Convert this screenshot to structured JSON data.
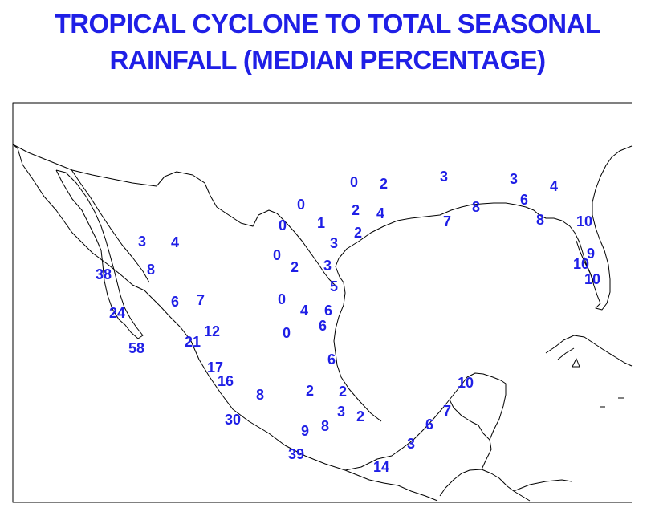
{
  "title": {
    "line1": "TROPICAL CYCLONE TO TOTAL SEASONAL",
    "line2": "RAINFALL (MEDIAN PERCENTAGE)"
  },
  "colors": {
    "title": "#1f1fe6",
    "values": "#1f1fe6",
    "coastline": "#000000",
    "background": "#ffffff"
  },
  "stations": [
    {
      "label": "0"
    },
    {
      "label": "2"
    },
    {
      "label": "3"
    },
    {
      "label": "3"
    },
    {
      "label": "4"
    },
    {
      "label": "0"
    },
    {
      "label": "2"
    },
    {
      "label": "4"
    },
    {
      "label": "8"
    },
    {
      "label": "6"
    },
    {
      "label": "7"
    },
    {
      "label": "0"
    },
    {
      "label": "1"
    },
    {
      "label": "2"
    },
    {
      "label": "8"
    },
    {
      "label": "10"
    },
    {
      "label": "3"
    },
    {
      "label": "4"
    },
    {
      "label": "3"
    },
    {
      "label": "0"
    },
    {
      "label": "2"
    },
    {
      "label": "3"
    },
    {
      "label": "9"
    },
    {
      "label": "38"
    },
    {
      "label": "8"
    },
    {
      "label": "10"
    },
    {
      "label": "10"
    },
    {
      "label": "5"
    },
    {
      "label": "6"
    },
    {
      "label": "7"
    },
    {
      "label": "0"
    },
    {
      "label": "4"
    },
    {
      "label": "6"
    },
    {
      "label": "24"
    },
    {
      "label": "6"
    },
    {
      "label": "0"
    },
    {
      "label": "12"
    },
    {
      "label": "21"
    },
    {
      "label": "58"
    },
    {
      "label": "6"
    },
    {
      "label": "17"
    },
    {
      "label": "16"
    },
    {
      "label": "10"
    },
    {
      "label": "8"
    },
    {
      "label": "2"
    },
    {
      "label": "2"
    },
    {
      "label": "3"
    },
    {
      "label": "2"
    },
    {
      "label": "7"
    },
    {
      "label": "30"
    },
    {
      "label": "8"
    },
    {
      "label": "9"
    },
    {
      "label": "6"
    },
    {
      "label": "3"
    },
    {
      "label": "39"
    },
    {
      "label": "14"
    }
  ]
}
